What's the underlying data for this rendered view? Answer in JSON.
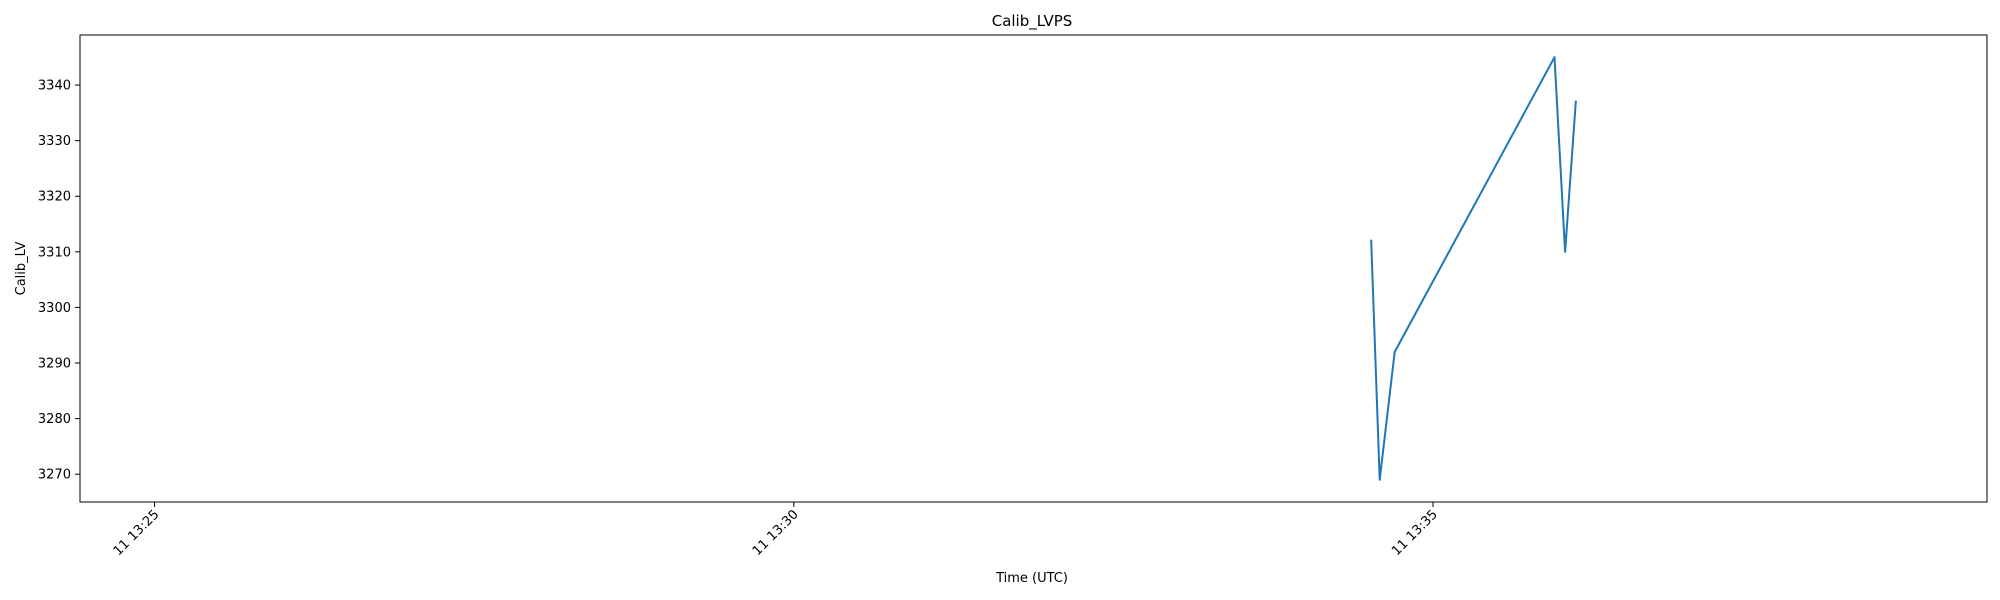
{
  "chart_data": {
    "type": "line",
    "title": "Calib_LVPS",
    "xlabel": "Time (UTC)",
    "ylabel": "Calib_LV",
    "x_ticks": [
      {
        "label": "11 13:25",
        "value": "13:25:00"
      },
      {
        "label": "11 13:30",
        "value": "13:30:00"
      },
      {
        "label": "11 13:35",
        "value": "13:35:00"
      }
    ],
    "y_ticks": [
      3270,
      3280,
      3290,
      3300,
      3310,
      3320,
      3330,
      3340
    ],
    "xlim": [
      "13:24:25",
      "13:39:20"
    ],
    "ylim": [
      3265,
      3349
    ],
    "grid": false,
    "series": [
      {
        "color": "#1f77b4",
        "points": [
          {
            "x": "13:34:31",
            "y": 3312
          },
          {
            "x": "13:34:35",
            "y": 3269
          },
          {
            "x": "13:34:42",
            "y": 3292
          },
          {
            "x": "13:35:57",
            "y": 3345
          },
          {
            "x": "13:36:02",
            "y": 3310
          },
          {
            "x": "13:36:07",
            "y": 3337
          }
        ]
      }
    ]
  }
}
